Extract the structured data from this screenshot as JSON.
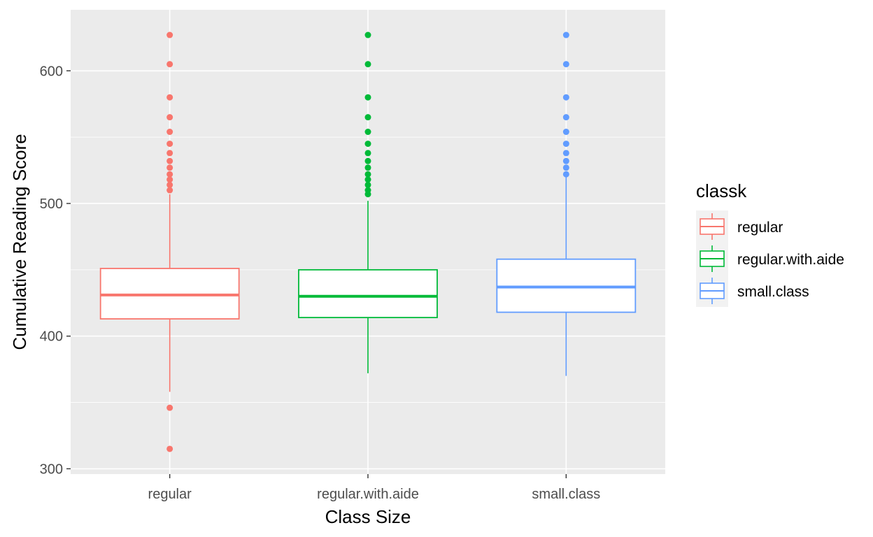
{
  "chart_data": {
    "type": "boxplot",
    "xlabel": "Class Size",
    "ylabel": "Cumulative Reading Score",
    "categories": [
      "regular",
      "regular.with.aide",
      "small.class"
    ],
    "ylim": [
      296,
      646
    ],
    "y_ticks": [
      300,
      400,
      500,
      600
    ],
    "y_minor_ticks": [
      350,
      450,
      550
    ],
    "grid": true,
    "legend": {
      "title": "classk",
      "placement": "right",
      "entries": [
        "regular",
        "regular.with.aide",
        "small.class"
      ]
    },
    "colors": {
      "regular": "#F8766D",
      "regular.with.aide": "#00BA38",
      "small.class": "#619CFF",
      "panel": "#EBEBEB",
      "grid": "#FFFFFF",
      "tick_text": "#4D4D4D"
    },
    "series": [
      {
        "name": "regular",
        "q1": 413,
        "median": 431,
        "q3": 451,
        "whisker_low": 358,
        "whisker_high": 507,
        "outliers": [
          627,
          605,
          580,
          565,
          554,
          545,
          538,
          532,
          527,
          522,
          518,
          514,
          510,
          346,
          315
        ]
      },
      {
        "name": "regular.with.aide",
        "q1": 414,
        "median": 430,
        "q3": 450,
        "whisker_low": 372,
        "whisker_high": 502,
        "outliers": [
          627,
          605,
          580,
          565,
          554,
          545,
          538,
          532,
          527,
          522,
          518,
          514,
          510,
          507
        ]
      },
      {
        "name": "small.class",
        "q1": 418,
        "median": 437,
        "q3": 458,
        "whisker_low": 370,
        "whisker_high": 520,
        "outliers": [
          627,
          605,
          580,
          565,
          554,
          545,
          538,
          532,
          527,
          522
        ]
      }
    ]
  }
}
